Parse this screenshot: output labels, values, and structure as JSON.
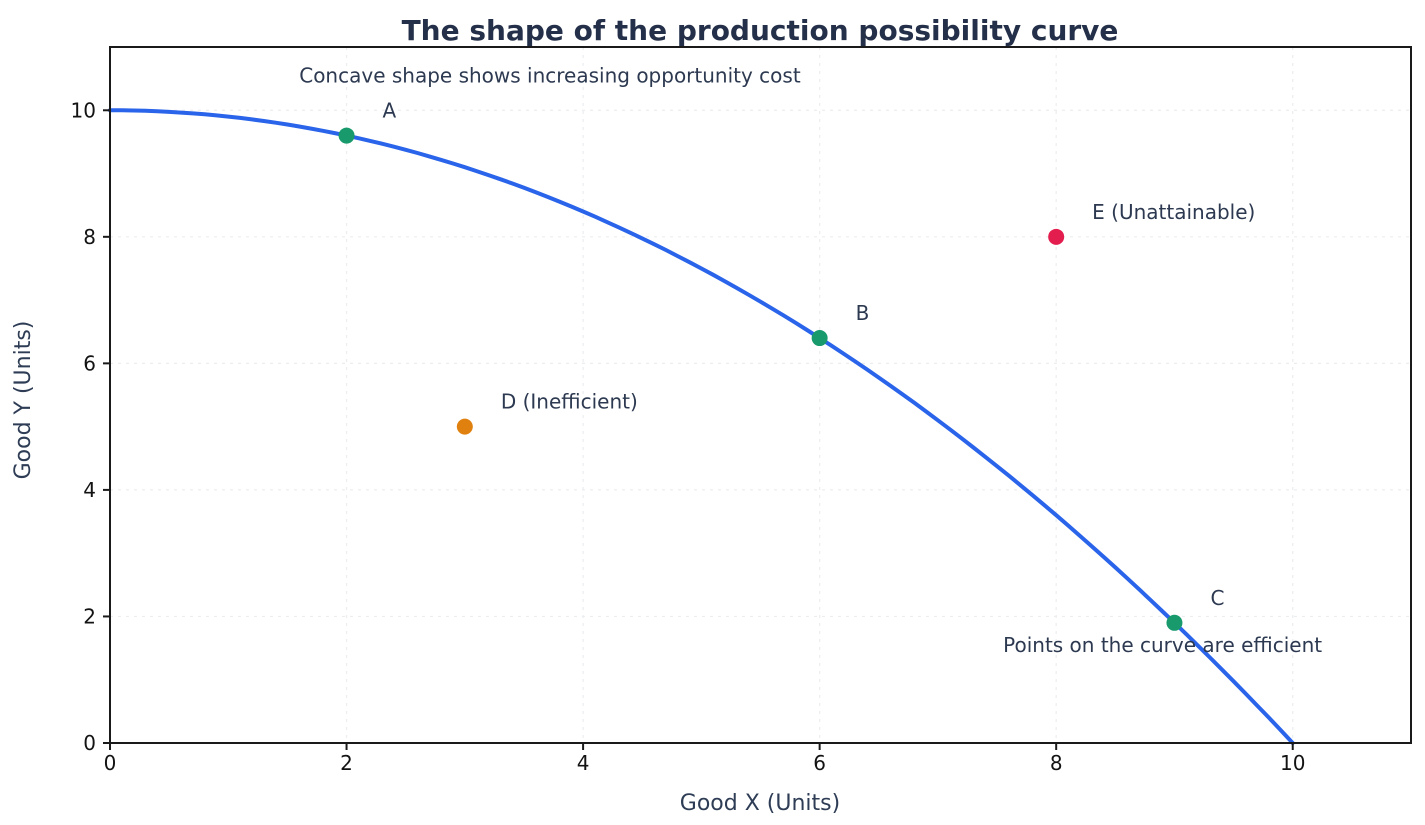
{
  "chart_data": {
    "type": "line",
    "title": "The shape of the production possibility curve",
    "xlabel": "Good X (Units)",
    "ylabel": "Good Y (Units)",
    "xlim": [
      0,
      11
    ],
    "ylim": [
      0,
      11
    ],
    "xticks": [
      0,
      2,
      4,
      6,
      8,
      10
    ],
    "yticks": [
      0,
      2,
      4,
      6,
      8,
      10
    ],
    "grid": {
      "style": "dashed",
      "color": "#ebedef"
    },
    "legend": "none",
    "curve": {
      "expression": "y = 10 - 0.1*x^2",
      "coefficients": {
        "a": -0.1,
        "b": 0,
        "c": 10
      },
      "x_range": [
        0,
        10
      ],
      "x_step": 0.1,
      "color": "#2a64ea",
      "width": 4
    },
    "points": [
      {
        "label": "A",
        "x": 2,
        "y": 9.6,
        "color": "#189a6c"
      },
      {
        "label": "B",
        "x": 6,
        "y": 6.4,
        "color": "#189a6c"
      },
      {
        "label": "C",
        "x": 9,
        "y": 1.9,
        "color": "#189a6c"
      },
      {
        "label": "D (Inefficient)",
        "x": 3,
        "y": 5,
        "color": "#e0810f"
      },
      {
        "label": "E (Unattainable)",
        "x": 8,
        "y": 8,
        "color": "#e31e4e"
      }
    ],
    "annotations": [
      {
        "text": "Concave shape shows increasing opportunity cost",
        "x": 3.72,
        "y": 10.55
      },
      {
        "text": "Points on the curve are efficient",
        "x": 8.9,
        "y": 1.55
      }
    ]
  }
}
